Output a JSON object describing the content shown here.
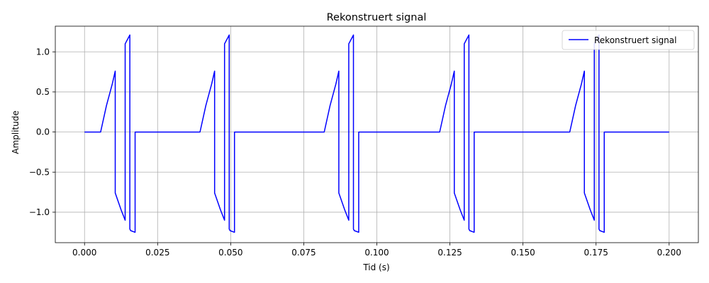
{
  "chart_data": {
    "type": "line",
    "title": "Rekonstruert signal",
    "xlabel": "Tid (s)",
    "ylabel": "Amplitude",
    "xlim": [
      -0.01,
      0.21
    ],
    "ylim": [
      -1.38,
      1.32
    ],
    "xticks": [
      0.0,
      0.025,
      0.05,
      0.075,
      0.1,
      0.125,
      0.15,
      0.175,
      0.2
    ],
    "xtick_labels": [
      "0.000",
      "0.025",
      "0.050",
      "0.075",
      "0.100",
      "0.125",
      "0.150",
      "0.175",
      "0.200"
    ],
    "yticks": [
      -1.0,
      -0.5,
      0.0,
      0.5,
      1.0
    ],
    "ytick_labels": [
      "−1.0",
      "−0.5",
      "0.0",
      "0.5",
      "1.0"
    ],
    "grid": true,
    "legend_position": "upper right",
    "series": [
      {
        "name": "Rekonstruert signal",
        "color": "#0000ff",
        "x": [
          0.0,
          0.0055,
          0.0075,
          0.0095,
          0.0105,
          0.0105,
          0.0125,
          0.0139,
          0.0139,
          0.0155,
          0.0155,
          0.0158,
          0.0173,
          0.0173,
          0.0175,
          0.0395,
          0.0415,
          0.0435,
          0.0445,
          0.0445,
          0.0465,
          0.0479,
          0.0479,
          0.0495,
          0.0495,
          0.0498,
          0.0513,
          0.0513,
          0.0515,
          0.082,
          0.084,
          0.086,
          0.087,
          0.087,
          0.089,
          0.0904,
          0.0904,
          0.092,
          0.092,
          0.0923,
          0.0938,
          0.0938,
          0.094,
          0.1215,
          0.1235,
          0.1255,
          0.1265,
          0.1265,
          0.1285,
          0.1299,
          0.1299,
          0.1315,
          0.1315,
          0.1318,
          0.1333,
          0.1333,
          0.1335,
          0.166,
          0.168,
          0.17,
          0.171,
          0.171,
          0.173,
          0.1744,
          0.1744,
          0.176,
          0.176,
          0.1763,
          0.1778,
          0.1778,
          0.178,
          0.2
        ],
        "y": [
          0.0,
          0.0,
          0.33,
          0.6,
          0.76,
          -0.76,
          -0.97,
          -1.1,
          1.1,
          1.21,
          -1.21,
          -1.23,
          -1.25,
          0.0,
          0.0,
          0.0,
          0.33,
          0.6,
          0.76,
          -0.76,
          -0.97,
          -1.1,
          1.1,
          1.21,
          -1.21,
          -1.23,
          -1.25,
          0.0,
          0.0,
          0.0,
          0.33,
          0.6,
          0.76,
          -0.76,
          -0.97,
          -1.1,
          1.1,
          1.21,
          -1.21,
          -1.23,
          -1.25,
          0.0,
          0.0,
          0.0,
          0.33,
          0.6,
          0.76,
          -0.76,
          -0.97,
          -1.1,
          1.1,
          1.21,
          -1.21,
          -1.23,
          -1.25,
          0.0,
          0.0,
          0.0,
          0.33,
          0.6,
          0.76,
          -0.76,
          -0.97,
          -1.1,
          1.1,
          1.21,
          -1.21,
          -1.23,
          -1.25,
          0.0,
          0.0,
          0.0
        ]
      }
    ]
  }
}
